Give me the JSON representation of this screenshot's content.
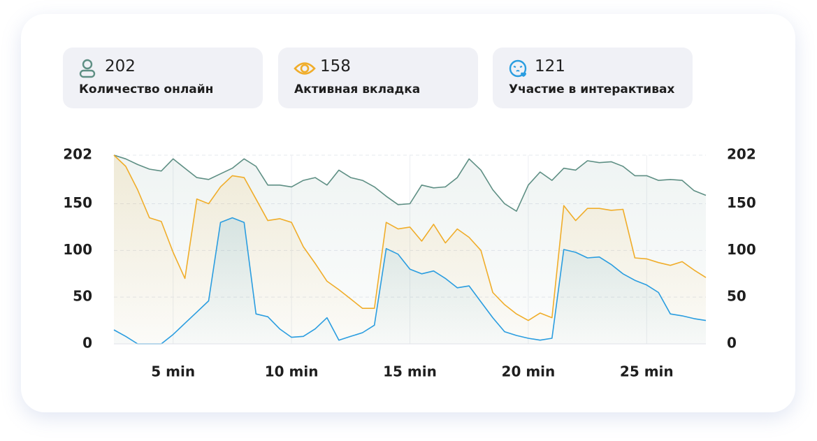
{
  "cards": [
    {
      "value": "202",
      "label": "Количество онлайн"
    },
    {
      "value": "158",
      "label": "Активная вкладка"
    },
    {
      "value": "121",
      "label": "Участие в интерактивах"
    }
  ],
  "chart_data": {
    "type": "line",
    "x": [
      2.5,
      3,
      3.5,
      4,
      4.5,
      5,
      5.5,
      6,
      6.5,
      7,
      7.5,
      8,
      8.5,
      9,
      9.5,
      10,
      10.5,
      11,
      11.5,
      12,
      12.5,
      13,
      13.5,
      14,
      14.5,
      15,
      15.5,
      16,
      16.5,
      17,
      17.5,
      18,
      18.5,
      19,
      19.5,
      20,
      20.5,
      21,
      21.5,
      22,
      22.5,
      23,
      23.5,
      24,
      24.5,
      25,
      25.5,
      26,
      26.5,
      27,
      27.5
    ],
    "series": [
      {
        "name": "Количество онлайн",
        "color": "#5e8f84",
        "values": [
          202,
          198,
          192,
          187,
          185,
          198,
          188,
          178,
          176,
          182,
          188,
          198,
          190,
          170,
          170,
          168,
          175,
          178,
          170,
          186,
          178,
          175,
          168,
          158,
          149,
          150,
          170,
          167,
          168,
          178,
          198,
          186,
          165,
          150,
          142,
          170,
          184,
          175,
          188,
          186,
          196,
          194,
          195,
          190,
          180,
          180,
          175,
          176,
          175,
          164,
          159
        ]
      },
      {
        "name": "Активная вкладка",
        "color": "#f0ad2a",
        "values": [
          202,
          190,
          165,
          135,
          131,
          98,
          70,
          155,
          150,
          168,
          180,
          178,
          155,
          132,
          134,
          130,
          104,
          86,
          67,
          58,
          48,
          38,
          38,
          130,
          123,
          125,
          110,
          128,
          108,
          123,
          114,
          100,
          55,
          42,
          32,
          25,
          33,
          28,
          148,
          132,
          145,
          145,
          143,
          144,
          92,
          91,
          87,
          84,
          88,
          79,
          71
        ]
      },
      {
        "name": "Участие в интерактивах",
        "color": "#2a9de0",
        "values": [
          15,
          8,
          0,
          0,
          0,
          10,
          22,
          34,
          46,
          130,
          135,
          130,
          32,
          29,
          16,
          7,
          8,
          16,
          28,
          4,
          8,
          12,
          20,
          102,
          96,
          80,
          75,
          78,
          70,
          60,
          62,
          45,
          28,
          13,
          9,
          6,
          4,
          6,
          101,
          98,
          92,
          93,
          85,
          75,
          68,
          63,
          55,
          32,
          30,
          27,
          25
        ]
      }
    ],
    "xlim": [
      2.5,
      27.5
    ],
    "xticks": [
      {
        "value": 5,
        "label": "5 min"
      },
      {
        "value": 10,
        "label": "10 min"
      },
      {
        "value": 15,
        "label": "15 min"
      },
      {
        "value": 20,
        "label": "20 min"
      },
      {
        "value": 25,
        "label": "25 min"
      }
    ],
    "ylim": [
      0,
      202
    ],
    "yticks": [
      0,
      50,
      100,
      150,
      202
    ],
    "grid": true
  }
}
